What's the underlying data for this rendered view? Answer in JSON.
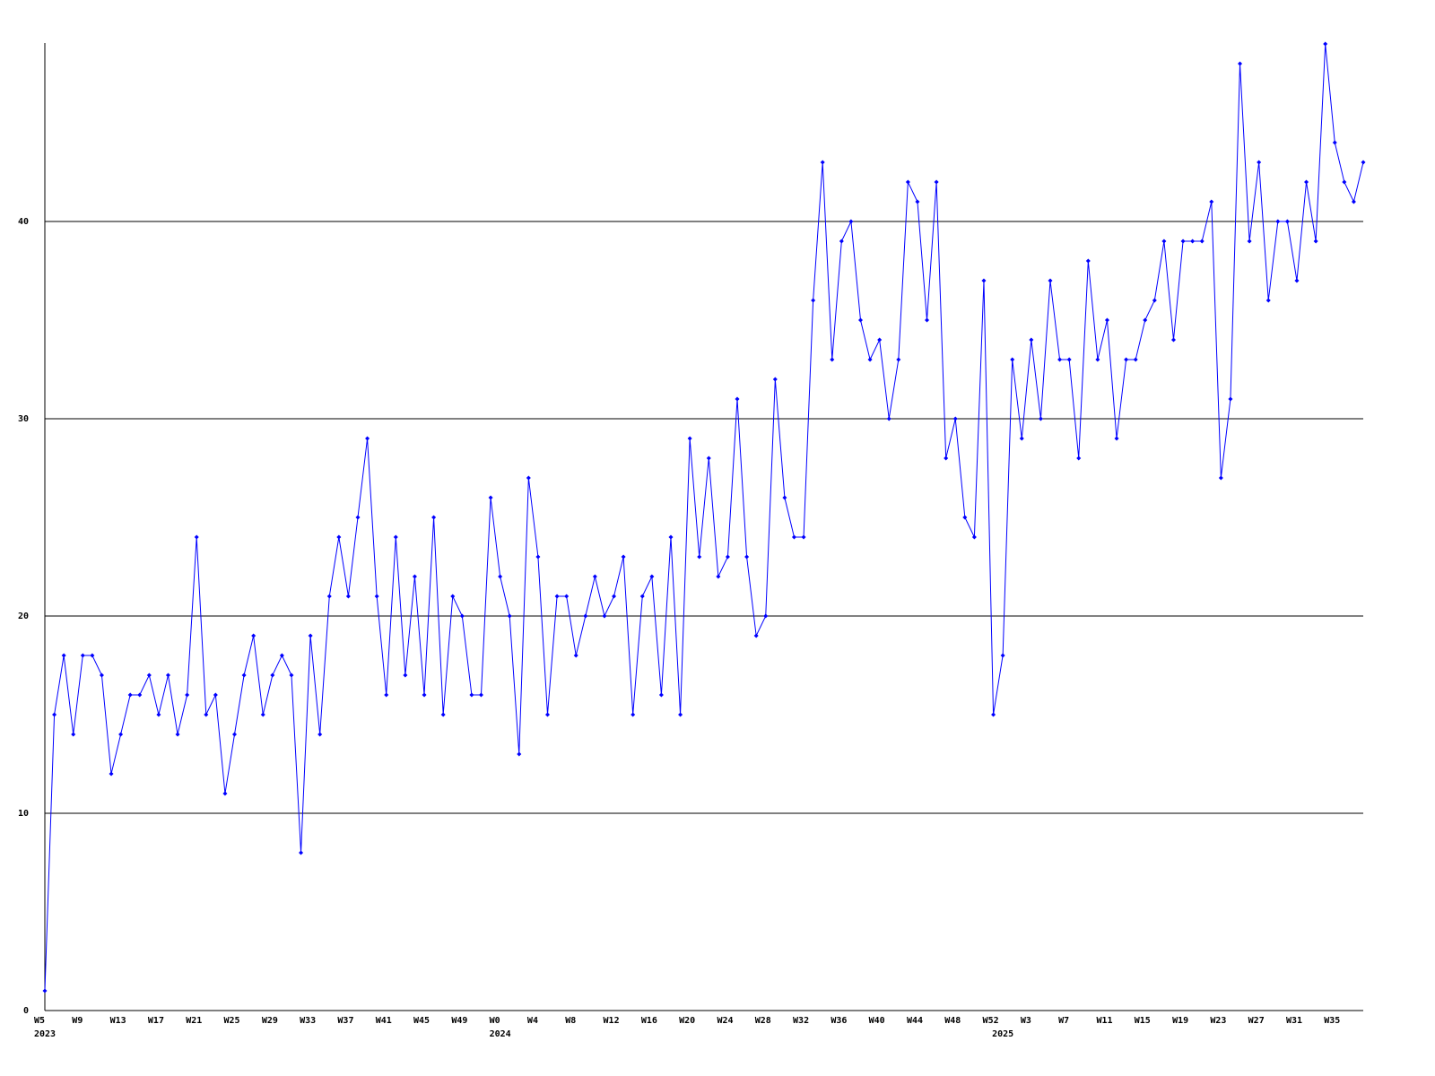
{
  "chart_data": {
    "type": "line",
    "categories": [
      "W5",
      null,
      null,
      null,
      "W9",
      null,
      null,
      null,
      "W13",
      null,
      null,
      null,
      "W17",
      null,
      null,
      null,
      "W21",
      null,
      null,
      null,
      "W25",
      null,
      null,
      null,
      "W29",
      null,
      null,
      null,
      "W33",
      null,
      null,
      null,
      "W37",
      null,
      null,
      null,
      "W41",
      null,
      null,
      null,
      "W45",
      null,
      null,
      null,
      "W49",
      null,
      null,
      null,
      "W0",
      null,
      null,
      null,
      "W4",
      null,
      null,
      null,
      "W8",
      null,
      null,
      null,
      "W12",
      null,
      null,
      null,
      "W16",
      null,
      null,
      null,
      "W20",
      null,
      null,
      null,
      "W24",
      null,
      null,
      null,
      "W28",
      null,
      null,
      null,
      "W32",
      null,
      null,
      null,
      "W36",
      null,
      null,
      null,
      "W40",
      null,
      null,
      null,
      "W44",
      null,
      null,
      null,
      "W48",
      null,
      null,
      null,
      "W52",
      null,
      null,
      null,
      "W3",
      null,
      null,
      null,
      "W7",
      null,
      null,
      null,
      "W11",
      null,
      null,
      null,
      "W15",
      null,
      null,
      null,
      "W19",
      null,
      null,
      null,
      "W23",
      null,
      null,
      null,
      "W27",
      null,
      null,
      null,
      "W31",
      null,
      null,
      null,
      "W35",
      null,
      null,
      null
    ],
    "years": [
      "2023",
      null,
      null,
      null,
      null,
      null,
      null,
      null,
      null,
      null,
      null,
      null,
      null,
      null,
      null,
      null,
      null,
      null,
      null,
      null,
      null,
      null,
      null,
      null,
      null,
      null,
      null,
      null,
      null,
      null,
      null,
      null,
      null,
      null,
      null,
      null,
      null,
      null,
      null,
      null,
      null,
      null,
      null,
      null,
      null,
      null,
      null,
      null,
      "2024",
      null,
      null,
      null,
      null,
      null,
      null,
      null,
      null,
      null,
      null,
      null,
      null,
      null,
      null,
      null,
      null,
      null,
      null,
      null,
      null,
      null,
      null,
      null,
      null,
      null,
      null,
      null,
      null,
      null,
      null,
      null,
      null,
      null,
      null,
      null,
      null,
      null,
      null,
      null,
      null,
      null,
      null,
      null,
      null,
      null,
      null,
      null,
      null,
      null,
      null,
      null,
      null,
      "2025",
      null,
      null,
      null,
      null,
      null,
      null,
      null,
      null,
      null,
      null,
      null,
      null,
      null,
      null,
      null,
      null,
      null,
      null,
      null,
      null,
      null,
      null,
      null,
      null,
      null,
      null,
      null,
      null,
      null,
      null,
      null,
      null,
      null,
      null,
      null,
      null,
      null,
      null
    ],
    "values": [
      1,
      15,
      18,
      14,
      18,
      18,
      17,
      12,
      14,
      16,
      16,
      17,
      15,
      17,
      14,
      16,
      24,
      15,
      16,
      11,
      14,
      17,
      19,
      15,
      17,
      18,
      17,
      8,
      19,
      14,
      21,
      24,
      21,
      25,
      29,
      21,
      16,
      24,
      17,
      22,
      16,
      25,
      15,
      21,
      20,
      16,
      16,
      26,
      22,
      20,
      13,
      27,
      23,
      15,
      21,
      21,
      18,
      20,
      22,
      20,
      21,
      23,
      15,
      21,
      22,
      16,
      24,
      15,
      29,
      23,
      28,
      22,
      23,
      31,
      23,
      19,
      20,
      32,
      26,
      24,
      24,
      36,
      43,
      33,
      39,
      40,
      35,
      33,
      34,
      30,
      33,
      42,
      41,
      35,
      42,
      28,
      30,
      25,
      24,
      37,
      15,
      18,
      33,
      29,
      34,
      30,
      37,
      33,
      33,
      28,
      38,
      33,
      35,
      29,
      33,
      33,
      35,
      36,
      39,
      34,
      39,
      39,
      39,
      41,
      27,
      31,
      48,
      39,
      43,
      36,
      40,
      40,
      37,
      42,
      39,
      49,
      44,
      42,
      41,
      43
    ],
    "color": "#0000ff",
    "ylim": [
      0,
      49
    ],
    "yticks": [
      0,
      10,
      20,
      30,
      40
    ],
    "grid": true
  }
}
